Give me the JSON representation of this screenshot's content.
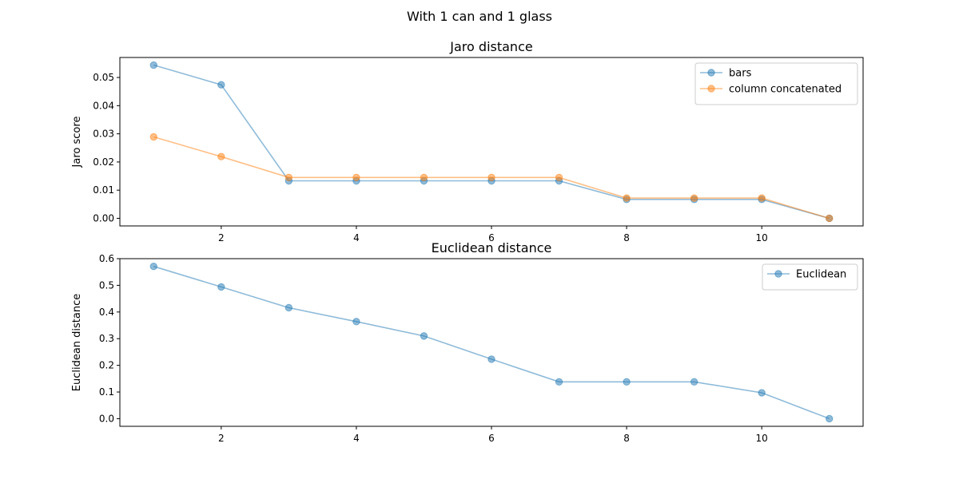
{
  "figure": {
    "suptitle": "With 1 can and 1 glass"
  },
  "chart_data": [
    {
      "type": "line",
      "title": "Jaro distance",
      "xlabel": "",
      "ylabel": "Jaro score",
      "x": [
        1,
        2,
        3,
        4,
        5,
        6,
        7,
        8,
        9,
        10,
        11
      ],
      "xlim": [
        0.5,
        11.5
      ],
      "ylim": [
        -0.0027,
        0.0571
      ],
      "xticks": [
        2,
        4,
        6,
        8,
        10
      ],
      "yticks": [
        0.0,
        0.01,
        0.02,
        0.03,
        0.04,
        0.05
      ],
      "ytick_labels": [
        "0.00",
        "0.01",
        "0.02",
        "0.03",
        "0.04",
        "0.05"
      ],
      "grid": false,
      "legend_position": "upper right",
      "series": [
        {
          "name": "bars",
          "color": "#1f77b4",
          "values": [
            0.0544,
            0.0474,
            0.0133,
            0.0133,
            0.0133,
            0.0133,
            0.0133,
            0.0067,
            0.0067,
            0.0067,
            0.0
          ]
        },
        {
          "name": "column concatenated",
          "color": "#ff7f0e",
          "values": [
            0.0289,
            0.0219,
            0.0145,
            0.0145,
            0.0145,
            0.0145,
            0.0145,
            0.0072,
            0.0072,
            0.0072,
            0.0
          ]
        }
      ]
    },
    {
      "type": "line",
      "title": "Euclidean distance",
      "xlabel": "",
      "ylabel": "Euclidean distance",
      "x": [
        1,
        2,
        3,
        4,
        5,
        6,
        7,
        8,
        9,
        10,
        11
      ],
      "xlim": [
        0.5,
        11.5
      ],
      "ylim": [
        -0.0286,
        0.6
      ],
      "xticks": [
        2,
        4,
        6,
        8,
        10
      ],
      "yticks": [
        0.0,
        0.1,
        0.2,
        0.3,
        0.4,
        0.5,
        0.6
      ],
      "ytick_labels": [
        "0.0",
        "0.1",
        "0.2",
        "0.3",
        "0.4",
        "0.5",
        "0.6"
      ],
      "grid": false,
      "legend_position": "upper right",
      "series": [
        {
          "name": "Euclidean",
          "color": "#1f77b4",
          "values": [
            0.571,
            0.494,
            0.416,
            0.364,
            0.31,
            0.223,
            0.138,
            0.138,
            0.138,
            0.097,
            0.0
          ]
        }
      ]
    }
  ]
}
